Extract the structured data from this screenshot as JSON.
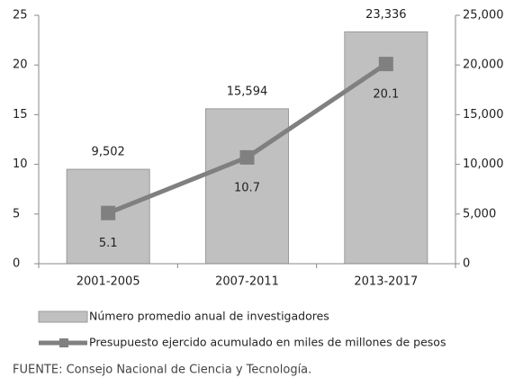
{
  "chart_data": {
    "type": "bar-line",
    "categories": [
      "2001-2005",
      "2007-2011",
      "2013-2017"
    ],
    "series": [
      {
        "name": "Número promedio anual de investigadores",
        "type": "bar",
        "axis": "y2",
        "color": "#c0c0c0",
        "values": [
          9502,
          15594,
          23336
        ],
        "value_labels": [
          "9,502",
          "15,594",
          "23,336"
        ]
      },
      {
        "name": "Presupuesto ejercido acumulado en miles de millones de pesos",
        "type": "line",
        "axis": "y",
        "color": "#808080",
        "values": [
          5.1,
          10.7,
          20.1
        ]
      }
    ],
    "ylim": [
      0,
      25
    ],
    "yticks": [
      0,
      5,
      10,
      15,
      20,
      25
    ],
    "y2lim": [
      0,
      25000
    ],
    "y2ticks": [
      0,
      {
        "value": 5000,
        "label": "5,000"
      },
      {
        "value": 10000,
        "label": "10,000"
      },
      {
        "value": 15000,
        "label": "15,000"
      },
      {
        "value": 20000,
        "label": "20,000"
      },
      {
        "value": 25000,
        "label": "25,000"
      }
    ],
    "source": "FUENTE: Consejo  Nacional de Ciencia y Tecnología."
  }
}
